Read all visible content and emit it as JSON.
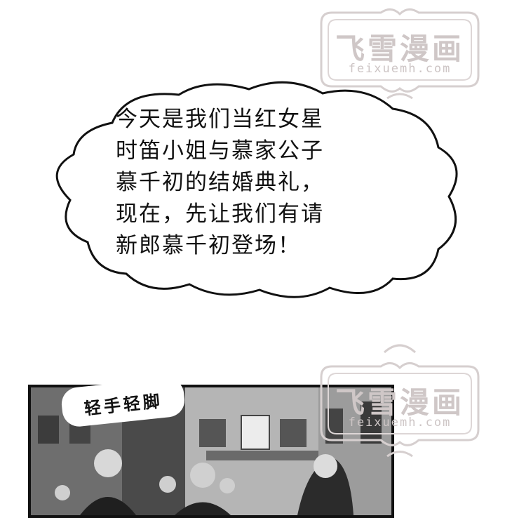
{
  "watermark": {
    "title": "飞雪漫画",
    "url": "feixuemh.com"
  },
  "speech_bubble": {
    "lines": [
      "今天是我们当红女星",
      "时笛小姐与慕家公子",
      "慕千初的结婚典礼，",
      "现在，先让我们有请",
      "新郎慕千初登场！"
    ]
  },
  "sound_effect": "轻手轻脚",
  "colors": {
    "background": "#ffffff",
    "ink": "#111111",
    "watermark": "#d0c8c8"
  }
}
